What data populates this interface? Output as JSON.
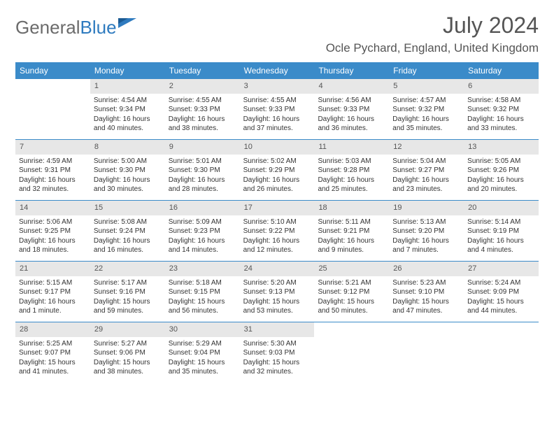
{
  "brand": {
    "name_left": "General",
    "name_right": "Blue"
  },
  "title": {
    "month": "July 2024",
    "location": "Ocle Pychard, England, United Kingdom"
  },
  "colors": {
    "header_bg": "#3b8bc9",
    "header_text": "#ffffff",
    "daynum_bg": "#e7e7e7",
    "border": "#3b8bc9",
    "logo_gray": "#6b6b6b",
    "logo_blue": "#2f7bbf"
  },
  "day_names": [
    "Sunday",
    "Monday",
    "Tuesday",
    "Wednesday",
    "Thursday",
    "Friday",
    "Saturday"
  ],
  "weeks": [
    [
      null,
      {
        "n": "1",
        "sunrise": "Sunrise: 4:54 AM",
        "sunset": "Sunset: 9:34 PM",
        "daylight": "Daylight: 16 hours and 40 minutes."
      },
      {
        "n": "2",
        "sunrise": "Sunrise: 4:55 AM",
        "sunset": "Sunset: 9:33 PM",
        "daylight": "Daylight: 16 hours and 38 minutes."
      },
      {
        "n": "3",
        "sunrise": "Sunrise: 4:55 AM",
        "sunset": "Sunset: 9:33 PM",
        "daylight": "Daylight: 16 hours and 37 minutes."
      },
      {
        "n": "4",
        "sunrise": "Sunrise: 4:56 AM",
        "sunset": "Sunset: 9:33 PM",
        "daylight": "Daylight: 16 hours and 36 minutes."
      },
      {
        "n": "5",
        "sunrise": "Sunrise: 4:57 AM",
        "sunset": "Sunset: 9:32 PM",
        "daylight": "Daylight: 16 hours and 35 minutes."
      },
      {
        "n": "6",
        "sunrise": "Sunrise: 4:58 AM",
        "sunset": "Sunset: 9:32 PM",
        "daylight": "Daylight: 16 hours and 33 minutes."
      }
    ],
    [
      {
        "n": "7",
        "sunrise": "Sunrise: 4:59 AM",
        "sunset": "Sunset: 9:31 PM",
        "daylight": "Daylight: 16 hours and 32 minutes."
      },
      {
        "n": "8",
        "sunrise": "Sunrise: 5:00 AM",
        "sunset": "Sunset: 9:30 PM",
        "daylight": "Daylight: 16 hours and 30 minutes."
      },
      {
        "n": "9",
        "sunrise": "Sunrise: 5:01 AM",
        "sunset": "Sunset: 9:30 PM",
        "daylight": "Daylight: 16 hours and 28 minutes."
      },
      {
        "n": "10",
        "sunrise": "Sunrise: 5:02 AM",
        "sunset": "Sunset: 9:29 PM",
        "daylight": "Daylight: 16 hours and 26 minutes."
      },
      {
        "n": "11",
        "sunrise": "Sunrise: 5:03 AM",
        "sunset": "Sunset: 9:28 PM",
        "daylight": "Daylight: 16 hours and 25 minutes."
      },
      {
        "n": "12",
        "sunrise": "Sunrise: 5:04 AM",
        "sunset": "Sunset: 9:27 PM",
        "daylight": "Daylight: 16 hours and 23 minutes."
      },
      {
        "n": "13",
        "sunrise": "Sunrise: 5:05 AM",
        "sunset": "Sunset: 9:26 PM",
        "daylight": "Daylight: 16 hours and 20 minutes."
      }
    ],
    [
      {
        "n": "14",
        "sunrise": "Sunrise: 5:06 AM",
        "sunset": "Sunset: 9:25 PM",
        "daylight": "Daylight: 16 hours and 18 minutes."
      },
      {
        "n": "15",
        "sunrise": "Sunrise: 5:08 AM",
        "sunset": "Sunset: 9:24 PM",
        "daylight": "Daylight: 16 hours and 16 minutes."
      },
      {
        "n": "16",
        "sunrise": "Sunrise: 5:09 AM",
        "sunset": "Sunset: 9:23 PM",
        "daylight": "Daylight: 16 hours and 14 minutes."
      },
      {
        "n": "17",
        "sunrise": "Sunrise: 5:10 AM",
        "sunset": "Sunset: 9:22 PM",
        "daylight": "Daylight: 16 hours and 12 minutes."
      },
      {
        "n": "18",
        "sunrise": "Sunrise: 5:11 AM",
        "sunset": "Sunset: 9:21 PM",
        "daylight": "Daylight: 16 hours and 9 minutes."
      },
      {
        "n": "19",
        "sunrise": "Sunrise: 5:13 AM",
        "sunset": "Sunset: 9:20 PM",
        "daylight": "Daylight: 16 hours and 7 minutes."
      },
      {
        "n": "20",
        "sunrise": "Sunrise: 5:14 AM",
        "sunset": "Sunset: 9:19 PM",
        "daylight": "Daylight: 16 hours and 4 minutes."
      }
    ],
    [
      {
        "n": "21",
        "sunrise": "Sunrise: 5:15 AM",
        "sunset": "Sunset: 9:17 PM",
        "daylight": "Daylight: 16 hours and 1 minute."
      },
      {
        "n": "22",
        "sunrise": "Sunrise: 5:17 AM",
        "sunset": "Sunset: 9:16 PM",
        "daylight": "Daylight: 15 hours and 59 minutes."
      },
      {
        "n": "23",
        "sunrise": "Sunrise: 5:18 AM",
        "sunset": "Sunset: 9:15 PM",
        "daylight": "Daylight: 15 hours and 56 minutes."
      },
      {
        "n": "24",
        "sunrise": "Sunrise: 5:20 AM",
        "sunset": "Sunset: 9:13 PM",
        "daylight": "Daylight: 15 hours and 53 minutes."
      },
      {
        "n": "25",
        "sunrise": "Sunrise: 5:21 AM",
        "sunset": "Sunset: 9:12 PM",
        "daylight": "Daylight: 15 hours and 50 minutes."
      },
      {
        "n": "26",
        "sunrise": "Sunrise: 5:23 AM",
        "sunset": "Sunset: 9:10 PM",
        "daylight": "Daylight: 15 hours and 47 minutes."
      },
      {
        "n": "27",
        "sunrise": "Sunrise: 5:24 AM",
        "sunset": "Sunset: 9:09 PM",
        "daylight": "Daylight: 15 hours and 44 minutes."
      }
    ],
    [
      {
        "n": "28",
        "sunrise": "Sunrise: 5:25 AM",
        "sunset": "Sunset: 9:07 PM",
        "daylight": "Daylight: 15 hours and 41 minutes."
      },
      {
        "n": "29",
        "sunrise": "Sunrise: 5:27 AM",
        "sunset": "Sunset: 9:06 PM",
        "daylight": "Daylight: 15 hours and 38 minutes."
      },
      {
        "n": "30",
        "sunrise": "Sunrise: 5:29 AM",
        "sunset": "Sunset: 9:04 PM",
        "daylight": "Daylight: 15 hours and 35 minutes."
      },
      {
        "n": "31",
        "sunrise": "Sunrise: 5:30 AM",
        "sunset": "Sunset: 9:03 PM",
        "daylight": "Daylight: 15 hours and 32 minutes."
      },
      null,
      null,
      null
    ]
  ]
}
